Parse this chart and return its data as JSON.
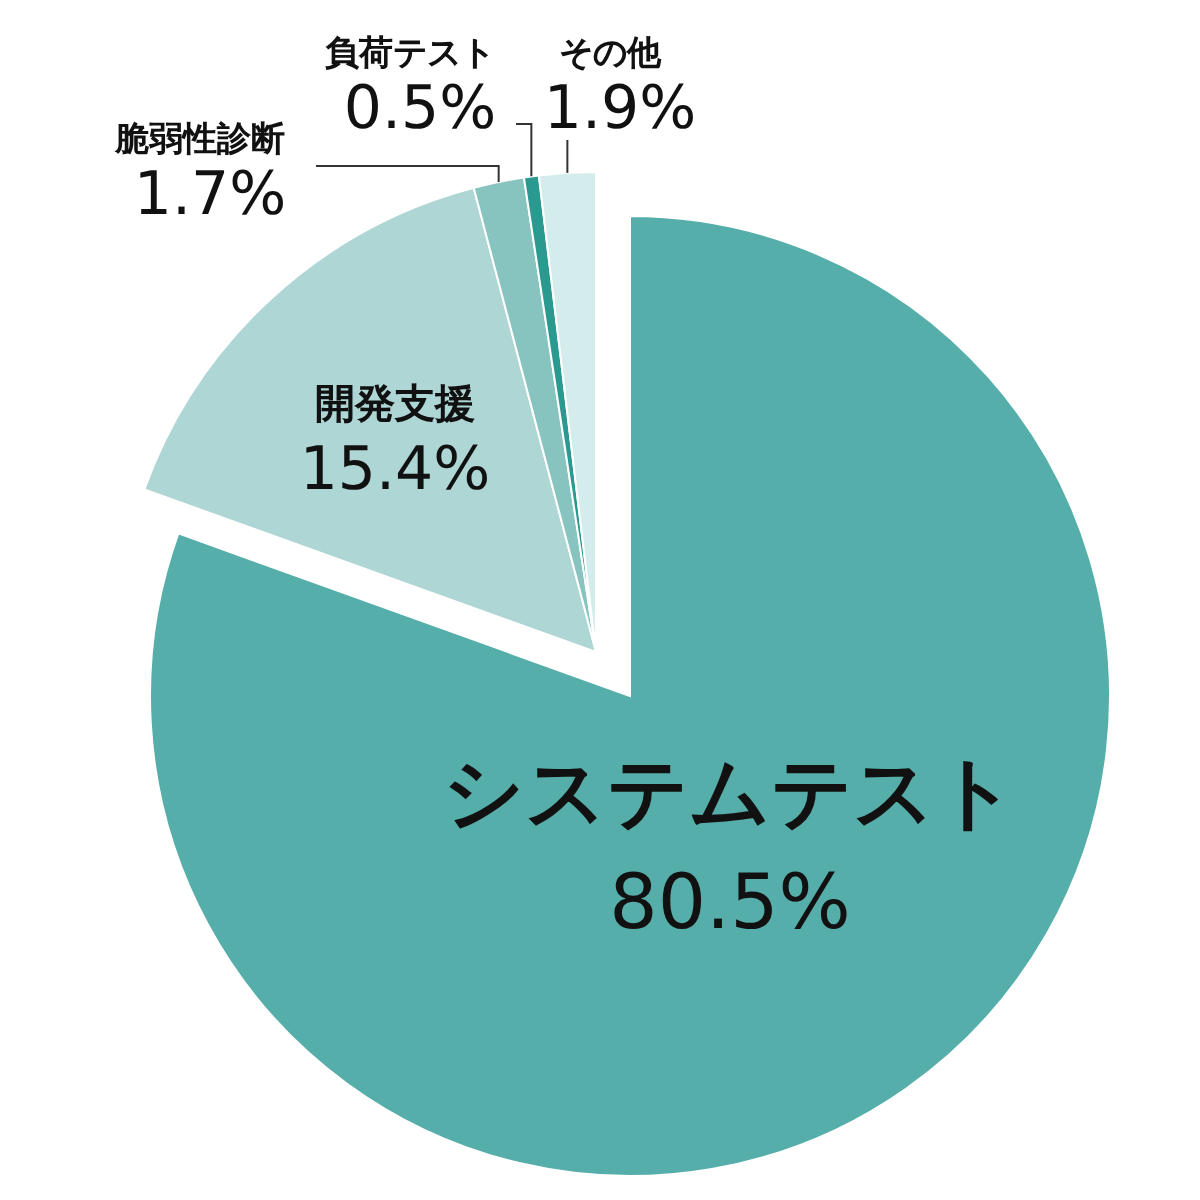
{
  "chart_data": {
    "type": "pie",
    "categories": [
      "システムテスト",
      "開発支援",
      "脆弱性診断",
      "負荷テスト",
      "その他"
    ],
    "values": [
      80.5,
      15.4,
      1.7,
      0.5,
      1.9
    ],
    "value_labels": [
      "80.5%",
      "15.4%",
      "1.7%",
      "0.5%",
      "1.9%"
    ],
    "colors": [
      "#56aeaa",
      "#aed6d4",
      "#88c4bf",
      "#2a9a90",
      "#d4eceb"
    ]
  }
}
